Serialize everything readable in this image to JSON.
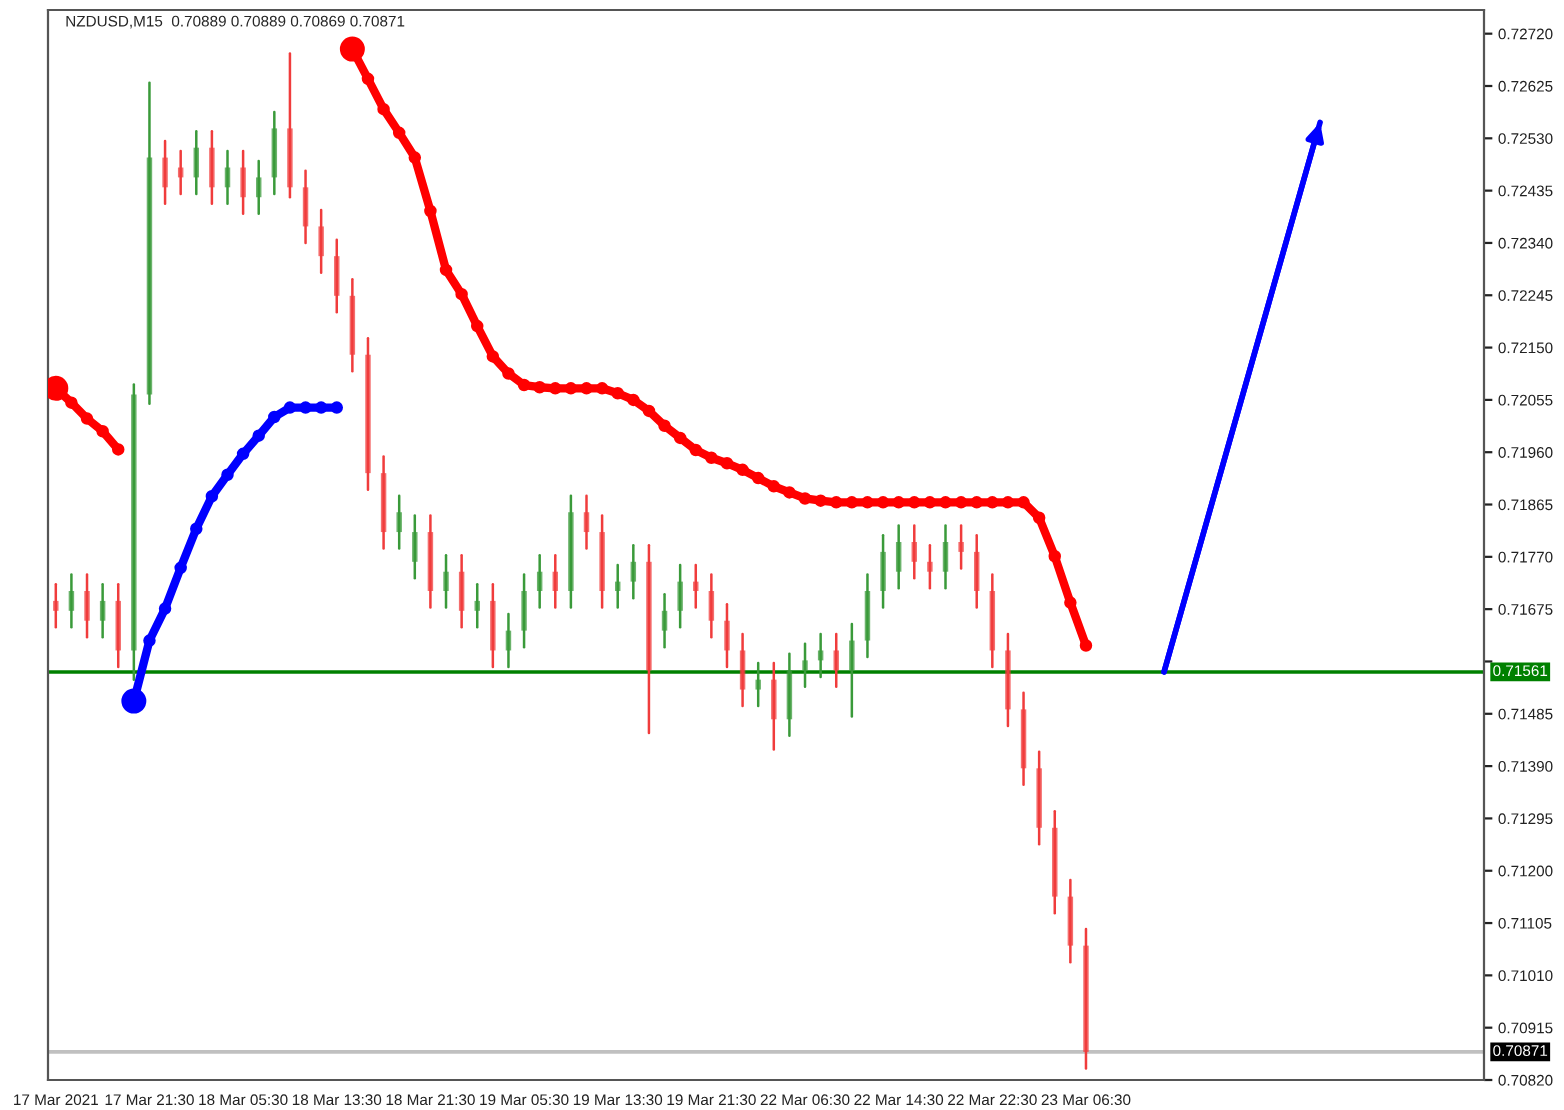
{
  "chart_data": {
    "type": "candlestick",
    "title": "NZDUSD,M15  0.70889 0.70889 0.70869 0.70871",
    "categories": [
      "17 Mar 2021",
      null,
      null,
      null,
      null,
      null,
      "17 Mar 21:30",
      null,
      null,
      null,
      null,
      null,
      "18 Mar 05:30",
      null,
      null,
      null,
      null,
      null,
      "18 Mar 13:30",
      null,
      null,
      null,
      null,
      null,
      "18 Mar 21:30",
      null,
      null,
      null,
      null,
      null,
      "19 Mar 05:30",
      null,
      null,
      null,
      null,
      null,
      "19 Mar 13:30",
      null,
      null,
      null,
      null,
      null,
      "19 Mar 21:30",
      null,
      null,
      null,
      null,
      null,
      "22 Mar 06:30",
      null,
      null,
      null,
      null,
      null,
      "22 Mar 14:30",
      null,
      null,
      null,
      null,
      null,
      "22 Mar 22:30",
      null,
      null,
      null,
      null,
      null,
      "23 Mar 06:30",
      null,
      null,
      null,
      null,
      null,
      null,
      null,
      null,
      null,
      null,
      null,
      null,
      null,
      null,
      null,
      null,
      null,
      null,
      null,
      null,
      null,
      null,
      null,
      null,
      null
    ],
    "ohlc": [
      [
        0.7169,
        0.7172,
        0.71642,
        0.71672
      ],
      [
        0.71672,
        0.71738,
        0.71642,
        0.71708
      ],
      [
        0.71708,
        0.71738,
        0.71624,
        0.71654
      ],
      [
        0.71654,
        0.7172,
        0.71624,
        0.7169
      ],
      [
        0.7169,
        0.7172,
        0.7157,
        0.716
      ],
      [
        0.716,
        0.72083,
        0.71547,
        0.72065
      ],
      [
        0.72065,
        0.72631,
        0.72048,
        0.72495
      ],
      [
        0.72495,
        0.72525,
        0.72411,
        0.72441
      ],
      [
        0.72477,
        0.72507,
        0.72429,
        0.72459
      ],
      [
        0.72459,
        0.72543,
        0.72429,
        0.72513
      ],
      [
        0.72513,
        0.72543,
        0.72411,
        0.72441
      ],
      [
        0.72441,
        0.72507,
        0.72411,
        0.72477
      ],
      [
        0.72477,
        0.72507,
        0.72393,
        0.72423
      ],
      [
        0.72423,
        0.72489,
        0.72393,
        0.72459
      ],
      [
        0.72459,
        0.72578,
        0.72429,
        0.72548
      ],
      [
        0.72548,
        0.72684,
        0.72423,
        0.72441
      ],
      [
        0.72441,
        0.72471,
        0.7234,
        0.7237
      ],
      [
        0.7237,
        0.724,
        0.72286,
        0.72316
      ],
      [
        0.72316,
        0.72346,
        0.72214,
        0.72244
      ],
      [
        0.72244,
        0.72274,
        0.72107,
        0.72137
      ],
      [
        0.72137,
        0.72167,
        0.71892,
        0.71922
      ],
      [
        0.71922,
        0.71952,
        0.71785,
        0.71815
      ],
      [
        0.71815,
        0.71881,
        0.71785,
        0.71851
      ],
      [
        0.71761,
        0.71845,
        0.71731,
        0.71815
      ],
      [
        0.71815,
        0.71845,
        0.71678,
        0.71708
      ],
      [
        0.71708,
        0.71773,
        0.71678,
        0.71743
      ],
      [
        0.71743,
        0.71773,
        0.71642,
        0.71672
      ],
      [
        0.71672,
        0.7172,
        0.71642,
        0.7169
      ],
      [
        0.7169,
        0.7172,
        0.7157,
        0.716
      ],
      [
        0.716,
        0.71666,
        0.7157,
        0.71636
      ],
      [
        0.71636,
        0.71738,
        0.71606,
        0.71708
      ],
      [
        0.71708,
        0.71773,
        0.71678,
        0.71743
      ],
      [
        0.71743,
        0.71773,
        0.71678,
        0.71708
      ],
      [
        0.71708,
        0.71881,
        0.71678,
        0.71851
      ],
      [
        0.71851,
        0.71881,
        0.71785,
        0.71815
      ],
      [
        0.71815,
        0.71845,
        0.71678,
        0.71708
      ],
      [
        0.71708,
        0.71755,
        0.71678,
        0.71725
      ],
      [
        0.71725,
        0.71791,
        0.71695,
        0.71761
      ],
      [
        0.71761,
        0.71791,
        0.7145,
        0.71564
      ],
      [
        0.71636,
        0.71702,
        0.71606,
        0.71672
      ],
      [
        0.71672,
        0.71755,
        0.71642,
        0.71725
      ],
      [
        0.71725,
        0.71755,
        0.71678,
        0.71708
      ],
      [
        0.71708,
        0.71738,
        0.71624,
        0.71654
      ],
      [
        0.71654,
        0.71684,
        0.7157,
        0.716
      ],
      [
        0.716,
        0.7163,
        0.71499,
        0.71529
      ],
      [
        0.71529,
        0.71577,
        0.71499,
        0.71547
      ],
      [
        0.71547,
        0.71577,
        0.7142,
        0.71475
      ],
      [
        0.71475,
        0.71594,
        0.71445,
        0.71564
      ],
      [
        0.71564,
        0.71612,
        0.71534,
        0.71582
      ],
      [
        0.71582,
        0.7163,
        0.71552,
        0.716
      ],
      [
        0.716,
        0.7163,
        0.71534,
        0.71564
      ],
      [
        0.71564,
        0.71648,
        0.7148,
        0.71618
      ],
      [
        0.71618,
        0.71738,
        0.71588,
        0.71708
      ],
      [
        0.71708,
        0.71809,
        0.71678,
        0.71779
      ],
      [
        0.71743,
        0.71827,
        0.71713,
        0.71797
      ],
      [
        0.71797,
        0.71827,
        0.71731,
        0.71761
      ],
      [
        0.71761,
        0.71791,
        0.71713,
        0.71743
      ],
      [
        0.71743,
        0.71827,
        0.71713,
        0.71797
      ],
      [
        0.71797,
        0.71827,
        0.71749,
        0.71779
      ],
      [
        0.71779,
        0.71809,
        0.71678,
        0.71708
      ],
      [
        0.71708,
        0.71738,
        0.7157,
        0.716
      ],
      [
        0.716,
        0.7163,
        0.71463,
        0.71493
      ],
      [
        0.71493,
        0.71523,
        0.71356,
        0.71386
      ],
      [
        0.71386,
        0.71416,
        0.71248,
        0.71278
      ],
      [
        0.71278,
        0.71308,
        0.71123,
        0.71153
      ],
      [
        0.71153,
        0.71183,
        0.71034,
        0.71064
      ],
      [
        0.71064,
        0.71094,
        0.70841,
        0.70871
      ],
      null,
      null,
      null,
      null,
      null,
      null,
      null,
      null,
      null,
      null,
      null,
      null,
      null,
      null,
      null,
      null,
      null,
      null,
      null,
      null,
      null,
      null,
      null,
      null,
      null
    ],
    "series": [
      {
        "type": "line",
        "color": "#ff0000",
        "marker": "circle",
        "values": [
          0.72076,
          0.7205,
          0.72021,
          0.71998,
          0.71965,
          null,
          null,
          null,
          null,
          null,
          null,
          null,
          null,
          null,
          null,
          null,
          null,
          null,
          null,
          0.72692,
          0.72638,
          0.72583,
          0.7254,
          0.72495,
          0.72398,
          0.72291,
          0.72247,
          0.72189,
          0.72134,
          0.72103,
          0.72082,
          0.72078,
          0.72076,
          0.72076,
          0.72076,
          0.72076,
          0.72067,
          0.72055,
          0.72035,
          0.72008,
          0.71986,
          0.71964,
          0.7195,
          0.7194,
          0.71928,
          0.71913,
          0.71898,
          0.71887,
          0.71876,
          0.71872,
          0.71869,
          0.71869,
          0.71869,
          0.71869,
          0.71869,
          0.71869,
          0.71869,
          0.71869,
          0.71869,
          0.71869,
          0.71869,
          0.71869,
          0.71869,
          0.71841,
          0.71771,
          0.71687,
          0.71609,
          null,
          null,
          null,
          null,
          null,
          null,
          null,
          null,
          null,
          null,
          null,
          null,
          null,
          null,
          null,
          null,
          null,
          null,
          null,
          null,
          null,
          null,
          null,
          null,
          null
        ]
      },
      {
        "type": "line",
        "color": "#0000ff",
        "marker": "circle",
        "values": [
          null,
          null,
          null,
          null,
          null,
          0.71508,
          0.71618,
          0.71676,
          0.7175,
          0.71821,
          0.7188,
          0.71919,
          0.71957,
          0.7199,
          0.72024,
          0.72041,
          0.72041,
          0.72041,
          0.72041,
          null,
          null,
          null,
          null,
          null,
          null,
          null,
          null,
          null,
          null,
          null,
          null,
          null,
          null,
          null,
          null,
          null,
          null,
          null,
          null,
          null,
          null,
          null,
          null,
          null,
          null,
          null,
          null,
          null,
          null,
          null,
          null,
          null,
          null,
          null,
          null,
          null,
          null,
          null,
          null,
          null,
          null,
          null,
          null,
          null,
          null,
          null,
          null,
          null,
          null,
          null,
          null,
          null,
          null,
          null,
          null,
          null,
          null,
          null,
          null,
          null,
          null,
          null,
          null,
          null,
          null,
          null,
          null,
          null,
          null,
          null,
          null,
          null
        ]
      },
      {
        "type": "line",
        "color": "#0000ff",
        "marker": "none",
        "values": [
          null,
          null,
          null,
          null,
          null,
          null,
          null,
          null,
          null,
          null,
          null,
          null,
          null,
          null,
          null,
          null,
          null,
          null,
          null,
          null,
          null,
          null,
          null,
          null,
          null,
          null,
          null,
          null,
          null,
          null,
          null,
          null,
          null,
          null,
          null,
          null,
          null,
          null,
          null,
          null,
          null,
          null,
          null,
          null,
          null,
          null,
          null,
          null,
          null,
          null,
          null,
          null,
          null,
          null,
          null,
          null,
          null,
          null,
          null,
          null,
          null,
          null,
          null,
          null,
          null,
          null,
          null,
          null,
          null,
          null,
          null,
          0.71561,
          null,
          null,
          null,
          null,
          null,
          null,
          null,
          null,
          null,
          0.72559,
          null,
          null,
          null,
          null,
          null,
          null,
          null,
          null,
          null,
          null
        ]
      }
    ],
    "ref_lines": [
      {
        "axis": "y",
        "value": 0.71561,
        "label": "0.71561",
        "color": "#008000"
      },
      {
        "axis": "y",
        "value": 0.70871,
        "label": "0.70871",
        "color": "#c0c0c0"
      }
    ],
    "ylim": [
      0.7082,
      0.72763
    ],
    "yticks": [
      {
        "value": 0.7082,
        "label": "0.70820"
      },
      {
        "value": 0.70915,
        "label": "0.70915"
      },
      {
        "value": 0.7101,
        "label": "0.71010"
      },
      {
        "value": 0.71105,
        "label": "0.71105"
      },
      {
        "value": 0.712,
        "label": "0.71200"
      },
      {
        "value": 0.71295,
        "label": "0.71295"
      },
      {
        "value": 0.7139,
        "label": "0.71390"
      },
      {
        "value": 0.71485,
        "label": "0.71485"
      },
      {
        "value": 0.7158,
        "label": null
      },
      {
        "value": 0.71675,
        "label": "0.71675"
      },
      {
        "value": 0.7177,
        "label": "0.71770"
      },
      {
        "value": 0.71865,
        "label": "0.71865"
      },
      {
        "value": 0.7196,
        "label": "0.71960"
      },
      {
        "value": 0.72055,
        "label": "0.72055"
      },
      {
        "value": 0.7215,
        "label": "0.72150"
      },
      {
        "value": 0.72245,
        "label": "0.72245"
      },
      {
        "value": 0.7234,
        "label": "0.72340"
      },
      {
        "value": 0.72435,
        "label": "0.72435"
      },
      {
        "value": 0.7253,
        "label": "0.72530"
      },
      {
        "value": 0.72625,
        "label": "0.72625"
      },
      {
        "value": 0.7272,
        "label": "0.72720"
      }
    ],
    "grid": false,
    "legend": false
  }
}
